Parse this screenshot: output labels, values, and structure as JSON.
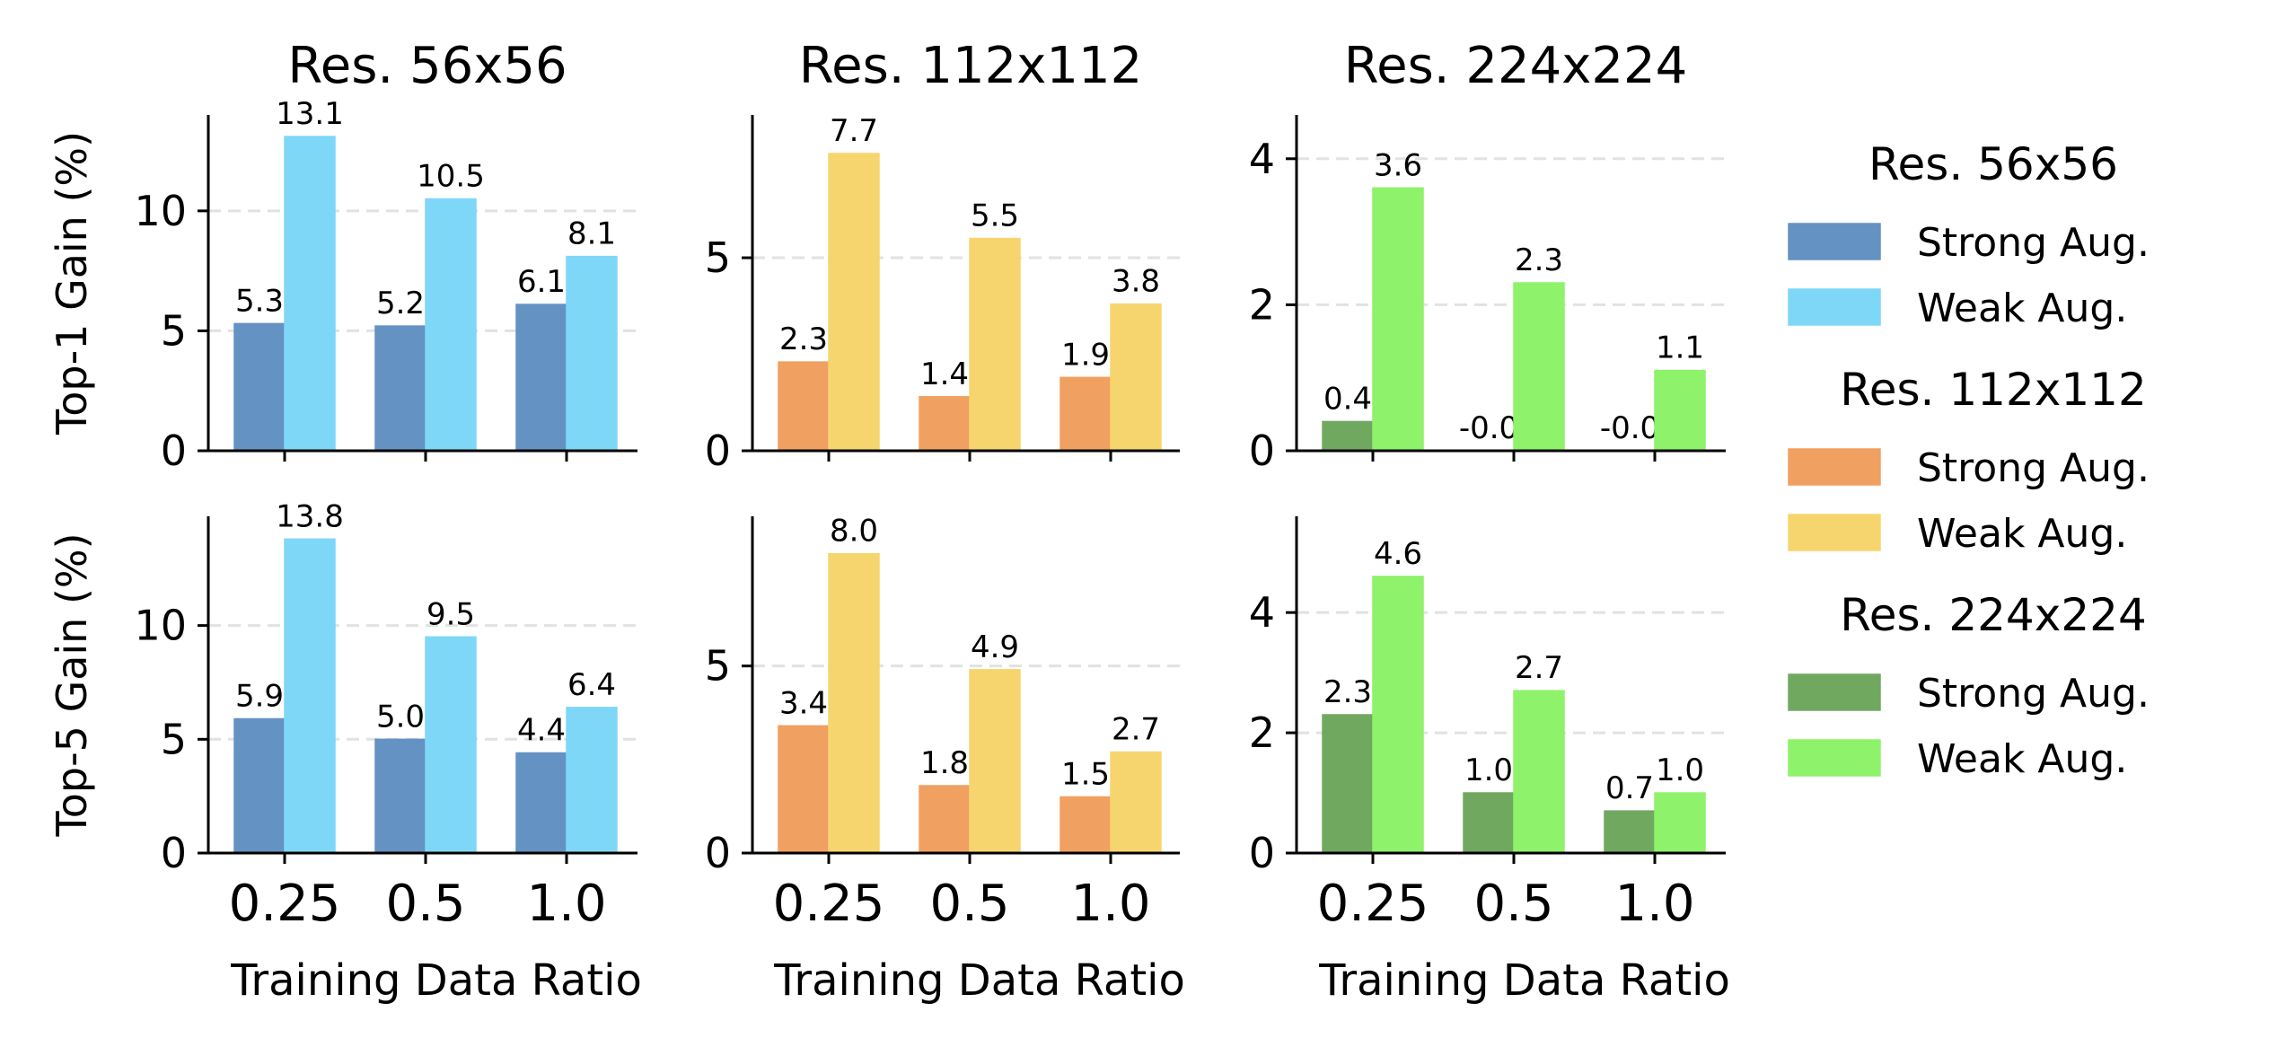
{
  "chart_data": {
    "type": "bar",
    "layout": "2x3 grid (rows: metrics, columns: resolutions)",
    "resolutions": [
      "Res. 56x56",
      "Res. 112x112",
      "Res. 224x224"
    ],
    "metrics": [
      "Top-1 Gain (%)",
      "Top-5 Gain (%)"
    ],
    "xlabel": "Training Data Ratio",
    "categories": [
      "0.25",
      "0.5",
      "1.0"
    ],
    "colors": {
      "Res. 56x56": {
        "Strong Aug.": "#6492c2",
        "Weak Aug.": "#7fd7f7"
      },
      "Res. 112x112": {
        "Strong Aug.": "#f0a060",
        "Weak Aug.": "#f7d56e"
      },
      "Res. 224x224": {
        "Strong Aug.": "#70a860",
        "Weak Aug.": "#8ef26a"
      }
    },
    "panels": [
      {
        "metric": "Top-1 Gain (%)",
        "resolution": "Res. 56x56",
        "ylim": [
          0,
          14
        ],
        "yticks": [
          0,
          5,
          10
        ],
        "series": [
          {
            "name": "Strong Aug.",
            "values": [
              5.3,
              5.2,
              6.1
            ],
            "labels": [
              "5.3",
              "5.2",
              "6.1"
            ]
          },
          {
            "name": "Weak Aug.",
            "values": [
              13.1,
              10.5,
              8.1
            ],
            "labels": [
              "13.1",
              "10.5",
              "8.1"
            ]
          }
        ]
      },
      {
        "metric": "Top-1 Gain (%)",
        "resolution": "Res. 112x112",
        "ylim": [
          0,
          8.7
        ],
        "yticks": [
          0,
          5
        ],
        "series": [
          {
            "name": "Strong Aug.",
            "values": [
              2.3,
              1.4,
              1.9
            ],
            "labels": [
              "2.3",
              "1.4",
              "1.9"
            ]
          },
          {
            "name": "Weak Aug.",
            "values": [
              7.7,
              5.5,
              3.8
            ],
            "labels": [
              "7.7",
              "5.5",
              "3.8"
            ]
          }
        ]
      },
      {
        "metric": "Top-1 Gain (%)",
        "resolution": "Res. 224x224",
        "ylim": [
          0,
          4.6
        ],
        "yticks": [
          0,
          2,
          4
        ],
        "series": [
          {
            "name": "Strong Aug.",
            "values": [
              0.4,
              -0.0,
              -0.0
            ],
            "labels": [
              "0.4",
              "-0.0",
              "-0.0"
            ]
          },
          {
            "name": "Weak Aug.",
            "values": [
              3.6,
              2.3,
              1.1
            ],
            "labels": [
              "3.6",
              "2.3",
              "1.1"
            ]
          }
        ]
      },
      {
        "metric": "Top-5 Gain (%)",
        "resolution": "Res. 56x56",
        "ylim": [
          0,
          14.8
        ],
        "yticks": [
          0,
          5,
          10
        ],
        "series": [
          {
            "name": "Strong Aug.",
            "values": [
              5.9,
              5.0,
              4.4
            ],
            "labels": [
              "5.9",
              "5.0",
              "4.4"
            ]
          },
          {
            "name": "Weak Aug.",
            "values": [
              13.8,
              9.5,
              6.4
            ],
            "labels": [
              "13.8",
              "9.5",
              "6.4"
            ]
          }
        ]
      },
      {
        "metric": "Top-5 Gain (%)",
        "resolution": "Res. 112x112",
        "ylim": [
          0,
          9.0
        ],
        "yticks": [
          0,
          5
        ],
        "series": [
          {
            "name": "Strong Aug.",
            "values": [
              3.4,
              1.8,
              1.5
            ],
            "labels": [
              "3.4",
              "1.8",
              "1.5"
            ]
          },
          {
            "name": "Weak Aug.",
            "values": [
              8.0,
              4.9,
              2.7
            ],
            "labels": [
              "8.0",
              "4.9",
              "2.7"
            ]
          }
        ]
      },
      {
        "metric": "Top-5 Gain (%)",
        "resolution": "Res. 224x224",
        "ylim": [
          0,
          5.6
        ],
        "yticks": [
          0,
          2,
          4
        ],
        "series": [
          {
            "name": "Strong Aug.",
            "values": [
              2.3,
              1.0,
              0.7
            ],
            "labels": [
              "2.3",
              "1.0",
              "0.7"
            ]
          },
          {
            "name": "Weak Aug.",
            "values": [
              4.6,
              2.7,
              1.0
            ],
            "labels": [
              "4.6",
              "2.7",
              "1.0"
            ]
          }
        ]
      }
    ],
    "grid": "dashed horizontal lines at y ticks > 0",
    "legend": {
      "placement": "right",
      "groups": [
        {
          "title": "Res. 56x56",
          "entries": [
            "Strong Aug.",
            "Weak Aug."
          ]
        },
        {
          "title": "Res. 112x112",
          "entries": [
            "Strong Aug.",
            "Weak Aug."
          ]
        },
        {
          "title": "Res. 224x224",
          "entries": [
            "Strong Aug.",
            "Weak Aug."
          ]
        }
      ]
    }
  }
}
